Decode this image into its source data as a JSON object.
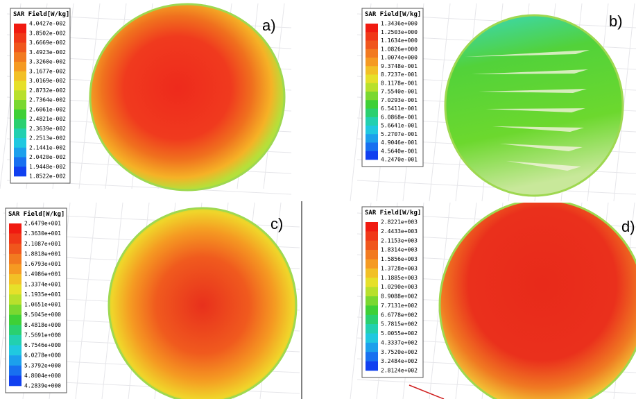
{
  "panels": [
    {
      "label": "a)",
      "legend_title": "SAR Field[W/kg]",
      "ticks": [
        "4.0427e-002",
        "3.8502e-002",
        "3.6669e-002",
        "3.4923e-002",
        "3.3260e-002",
        "3.1677e-002",
        "3.0169e-002",
        "2.8732e-002",
        "2.7364e-002",
        "2.6061e-002",
        "2.4821e-002",
        "2.3639e-002",
        "2.2513e-002",
        "2.1441e-002",
        "2.0420e-002",
        "1.9448e-002",
        "1.8522e-002"
      ]
    },
    {
      "label": "b)",
      "legend_title": "SAR Field[W/kg]",
      "ticks": [
        "1.3436e+000",
        "1.2503e+000",
        "1.1634e+000",
        "1.0826e+000",
        "1.0074e+000",
        "9.3748e-001",
        "8.7237e-001",
        "8.1178e-001",
        "7.5540e-001",
        "7.0293e-001",
        "6.5411e-001",
        "6.0868e-001",
        "5.6641e-001",
        "5.2707e-001",
        "4.9046e-001",
        "4.5640e-001",
        "4.2470e-001"
      ]
    },
    {
      "label": "c)",
      "legend_title": "SAR Field[W/kg]",
      "ticks": [
        "2.6479e+001",
        "2.3630e+001",
        "2.1087e+001",
        "1.8818e+001",
        "1.6793e+001",
        "1.4986e+001",
        "1.3374e+001",
        "1.1935e+001",
        "1.0651e+001",
        "9.5045e+000",
        "8.4818e+000",
        "7.5691e+000",
        "6.7546e+000",
        "6.0278e+000",
        "5.3792e+000",
        "4.8004e+000",
        "4.2839e+000"
      ]
    },
    {
      "label": "d)",
      "legend_title": "SAR Field[W/kg]",
      "ticks": [
        "2.8221e+003",
        "2.4433e+003",
        "2.1153e+003",
        "1.8314e+003",
        "1.5856e+003",
        "1.3728e+003",
        "1.1885e+003",
        "1.0290e+003",
        "8.9088e+002",
        "7.7131e+002",
        "6.6778e+002",
        "5.7815e+002",
        "5.0055e+002",
        "4.3337e+002",
        "3.7520e+002",
        "3.2484e+002",
        "2.8124e+002"
      ]
    }
  ]
}
